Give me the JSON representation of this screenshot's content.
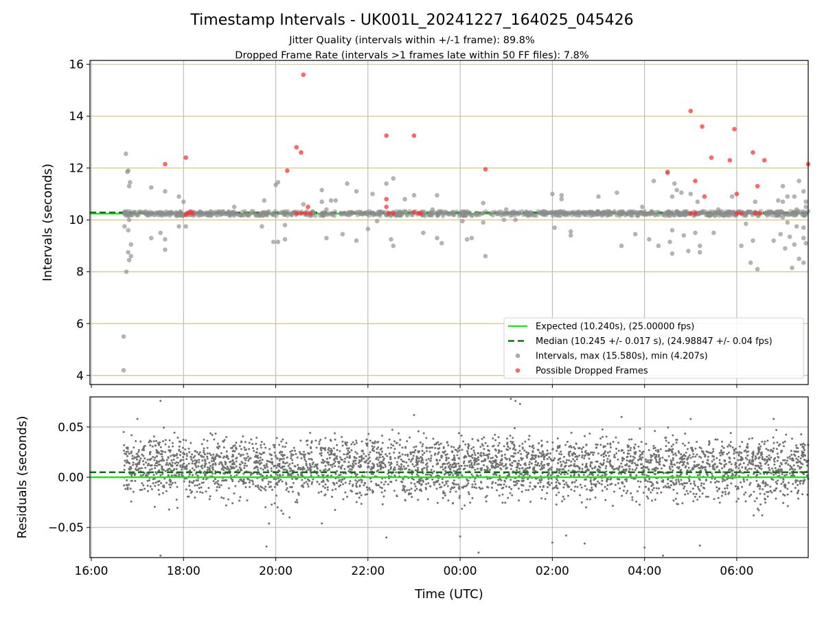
{
  "chart_data": [
    {
      "type": "scatter",
      "title": "Timestamp Intervals - UK001L_20241227_164025_045426",
      "subtitle_lines": [
        "Jitter Quality (intervals within +/-1 frame): 89.8%",
        "Dropped Frame Rate (intervals >1 frames late within 50 FF files): 7.8%"
      ],
      "xlabel": "",
      "ylabel": "Intervals (seconds)",
      "x_unit": "hours since 16:00 UTC on 2024-12-27",
      "xlim": [
        -0.03,
        15.55
      ],
      "ylim": [
        3.65,
        16.15
      ],
      "yticks": [
        4,
        6,
        8,
        10,
        12,
        14,
        16
      ],
      "ytick_labels": [
        "4",
        "6",
        "8",
        "10",
        "12",
        "14",
        "16"
      ],
      "grid_y_color": "#d4c27e",
      "grid_x_color": "#b0b0b0",
      "reference_lines": {
        "expected": {
          "value": 10.24,
          "color": "#22e022",
          "style": "solid"
        },
        "median": {
          "value": 10.245,
          "color": "#007a00",
          "style": "dashed"
        }
      },
      "legend_position": "lower-right",
      "legend": [
        {
          "label": "Expected (10.240s), (25.00000 fps)",
          "kind": "line-solid",
          "color": "#22e022"
        },
        {
          "label": "Median (10.245 +/- 0.017 s), (24.98847 +/- 0.04 fps)",
          "kind": "line-dashed",
          "color": "#007a00"
        },
        {
          "label": "Intervals, max (15.580s), min (4.207s)",
          "kind": "dot",
          "color": "#8c8c8c"
        },
        {
          "label": "Possible Dropped Frames",
          "kind": "dot",
          "color": "#ff3333"
        }
      ],
      "series": [
        {
          "name": "Intervals, max (15.580s), min (4.207s)",
          "color": "#8c8c8c",
          "points": [
            [
              0.7,
              4.2
            ],
            [
              0.7,
              5.5
            ],
            [
              0.72,
              9.75
            ],
            [
              0.75,
              12.55
            ],
            [
              0.78,
              11.85
            ],
            [
              0.8,
              11.9
            ],
            [
              0.82,
              11.3
            ],
            [
              0.84,
              11.45
            ],
            [
              0.76,
              8.0
            ],
            [
              0.8,
              8.75
            ],
            [
              0.82,
              8.45
            ],
            [
              0.86,
              9.05
            ],
            [
              0.86,
              8.6
            ],
            [
              0.8,
              9.6
            ],
            [
              0.82,
              10.0
            ],
            [
              1.3,
              11.25
            ],
            [
              1.3,
              9.3
            ],
            [
              1.5,
              9.5
            ],
            [
              1.6,
              11.1
            ],
            [
              1.6,
              9.25
            ],
            [
              1.6,
              8.85
            ],
            [
              1.9,
              10.9
            ],
            [
              1.9,
              9.75
            ],
            [
              2.0,
              10.7
            ],
            [
              2.05,
              9.75
            ],
            [
              3.1,
              10.5
            ],
            [
              3.7,
              9.75
            ],
            [
              3.75,
              10.75
            ],
            [
              3.95,
              9.15
            ],
            [
              4.0,
              11.35
            ],
            [
              4.05,
              9.15
            ],
            [
              4.05,
              11.45
            ],
            [
              4.2,
              9.25
            ],
            [
              4.2,
              9.8
            ],
            [
              4.6,
              10.6
            ],
            [
              5.0,
              10.7
            ],
            [
              5.0,
              11.15
            ],
            [
              5.1,
              10.4
            ],
            [
              5.1,
              9.3
            ],
            [
              5.2,
              10.75
            ],
            [
              5.3,
              10.75
            ],
            [
              5.45,
              9.45
            ],
            [
              5.55,
              11.4
            ],
            [
              5.65,
              10.3
            ],
            [
              5.75,
              11.1
            ],
            [
              5.75,
              9.2
            ],
            [
              5.85,
              10.3
            ],
            [
              6.0,
              9.65
            ],
            [
              6.1,
              11.0
            ],
            [
              6.2,
              9.95
            ],
            [
              6.4,
              11.4
            ],
            [
              6.5,
              9.25
            ],
            [
              6.55,
              11.6
            ],
            [
              6.55,
              9.0
            ],
            [
              6.65,
              10.2
            ],
            [
              6.8,
              10.8
            ],
            [
              7.0,
              10.95
            ],
            [
              7.2,
              9.5
            ],
            [
              7.4,
              10.4
            ],
            [
              7.5,
              10.95
            ],
            [
              7.5,
              9.3
            ],
            [
              7.6,
              9.1
            ],
            [
              8.05,
              9.95
            ],
            [
              8.15,
              9.25
            ],
            [
              8.25,
              9.3
            ],
            [
              8.55,
              8.6
            ],
            [
              8.5,
              9.9
            ],
            [
              8.5,
              10.65
            ],
            [
              8.95,
              10.0
            ],
            [
              9.0,
              10.4
            ],
            [
              9.2,
              10.0
            ],
            [
              10.0,
              11.0
            ],
            [
              10.05,
              9.7
            ],
            [
              10.2,
              10.95
            ],
            [
              10.2,
              10.8
            ],
            [
              10.4,
              9.55
            ],
            [
              10.4,
              9.4
            ],
            [
              10.7,
              10.2
            ],
            [
              11.0,
              10.9
            ],
            [
              11.4,
              11.05
            ],
            [
              11.5,
              9.0
            ],
            [
              11.8,
              9.45
            ],
            [
              11.95,
              10.5
            ],
            [
              12.1,
              9.25
            ],
            [
              12.2,
              11.5
            ],
            [
              12.3,
              9.0
            ],
            [
              12.3,
              10.2
            ],
            [
              12.5,
              11.8
            ],
            [
              12.55,
              9.15
            ],
            [
              12.6,
              9.6
            ],
            [
              12.6,
              8.7
            ],
            [
              12.6,
              10.9
            ],
            [
              12.65,
              11.4
            ],
            [
              12.7,
              11.15
            ],
            [
              12.8,
              11.05
            ],
            [
              12.85,
              9.4
            ],
            [
              12.95,
              8.8
            ],
            [
              13.0,
              11.0
            ],
            [
              13.1,
              9.5
            ],
            [
              13.15,
              10.7
            ],
            [
              13.2,
              9.0
            ],
            [
              13.2,
              8.75
            ],
            [
              13.5,
              9.5
            ],
            [
              13.6,
              10.4
            ],
            [
              13.9,
              10.9
            ],
            [
              14.1,
              9.0
            ],
            [
              14.3,
              8.35
            ],
            [
              14.45,
              8.1
            ],
            [
              14.8,
              9.2
            ],
            [
              14.9,
              10.2
            ],
            [
              14.95,
              9.45
            ],
            [
              15.05,
              8.9
            ],
            [
              15.15,
              9.35
            ],
            [
              15.2,
              8.15
            ],
            [
              15.3,
              10.4
            ],
            [
              15.45,
              11.1
            ],
            [
              15.0,
              10.7
            ],
            [
              15.1,
              9.9
            ],
            [
              15.25,
              10.9
            ],
            [
              15.35,
              8.5
            ],
            [
              15.0,
              11.3
            ],
            [
              15.0,
              10.1
            ],
            [
              14.9,
              10.75
            ],
            [
              15.1,
              10.9
            ],
            [
              15.25,
              9.05
            ],
            [
              15.3,
              9.75
            ],
            [
              15.45,
              9.3
            ],
            [
              15.35,
              11.5
            ],
            [
              15.5,
              9.1
            ],
            [
              15.45,
              8.35
            ],
            [
              15.5,
              10.7
            ],
            [
              15.45,
              9.7
            ],
            [
              15.5,
              10.5
            ],
            [
              14.2,
              9.85
            ],
            [
              14.35,
              9.2
            ],
            [
              14.4,
              10.7
            ]
          ]
        },
        {
          "name": "Possible Dropped Frames",
          "color": "#ff3333",
          "points": [
            [
              1.6,
              12.15
            ],
            [
              2.05,
              12.4
            ],
            [
              2.1,
              10.25
            ],
            [
              2.15,
              10.3
            ],
            [
              2.2,
              10.25
            ],
            [
              2.05,
              10.2
            ],
            [
              4.25,
              11.9
            ],
            [
              4.45,
              12.8
            ],
            [
              4.55,
              12.6
            ],
            [
              4.6,
              15.6
            ],
            [
              4.7,
              10.5
            ],
            [
              4.45,
              10.25
            ],
            [
              4.55,
              10.25
            ],
            [
              4.65,
              10.25
            ],
            [
              4.75,
              10.25
            ],
            [
              6.4,
              13.25
            ],
            [
              6.4,
              10.8
            ],
            [
              6.4,
              10.5
            ],
            [
              6.45,
              10.25
            ],
            [
              6.55,
              10.25
            ],
            [
              7.0,
              13.25
            ],
            [
              7.0,
              10.3
            ],
            [
              7.1,
              10.25
            ],
            [
              7.15,
              10.25
            ],
            [
              8.55,
              11.95
            ],
            [
              12.5,
              11.85
            ],
            [
              13.0,
              14.2
            ],
            [
              13.1,
              11.5
            ],
            [
              13.25,
              13.6
            ],
            [
              13.3,
              10.9
            ],
            [
              13.45,
              12.4
            ],
            [
              13.1,
              10.25
            ],
            [
              13.0,
              10.25
            ],
            [
              13.85,
              12.3
            ],
            [
              13.95,
              13.5
            ],
            [
              14.0,
              11.0
            ],
            [
              14.0,
              10.25
            ],
            [
              14.1,
              10.25
            ],
            [
              14.35,
              12.6
            ],
            [
              14.45,
              11.3
            ],
            [
              14.6,
              12.3
            ],
            [
              14.4,
              10.25
            ],
            [
              14.5,
              10.25
            ],
            [
              15.55,
              12.15
            ]
          ]
        }
      ]
    },
    {
      "type": "scatter",
      "title": "",
      "xlabel": "Time (UTC)",
      "ylabel": "Residuals (seconds)",
      "x_unit": "hours since 16:00 UTC on 2024-12-27",
      "xlim": [
        -0.03,
        15.55
      ],
      "ylim": [
        -0.08,
        0.08
      ],
      "yticks": [
        -0.05,
        0.0,
        0.05
      ],
      "ytick_labels": [
        "−0.05",
        "0.00",
        "0.05"
      ],
      "xticks": [
        0,
        2,
        4,
        6,
        8,
        10,
        12,
        14
      ],
      "xtick_labels": [
        "16:00",
        "18:00",
        "20:00",
        "22:00",
        "00:00",
        "02:00",
        "04:00",
        "06:00"
      ],
      "grid_color": "#b0b0b0",
      "reference_lines": {
        "expected": {
          "value": 0.0,
          "color": "#22e022",
          "style": "solid"
        },
        "median": {
          "value": 0.005,
          "color": "#007a00",
          "style": "dashed"
        }
      },
      "series": [
        {
          "name": "residuals",
          "color": "#707070",
          "x_range": [
            0.7,
            15.55
          ],
          "clusters": [
            {
              "center": 0.0,
              "spread": 0.012,
              "share": 0.5
            },
            {
              "center": 0.02,
              "spread": 0.01,
              "share": 0.5
            }
          ],
          "outliers": [
            [
              1.5,
              0.076
            ],
            [
              1.5,
              -0.078
            ],
            [
              3.8,
              -0.069
            ],
            [
              7.0,
              0.062
            ],
            [
              6.4,
              -0.06
            ],
            [
              8.0,
              -0.059
            ],
            [
              8.4,
              -0.075
            ],
            [
              10.0,
              -0.065
            ],
            [
              10.3,
              -0.058
            ],
            [
              10.7,
              -0.066
            ],
            [
              11.5,
              0.06
            ],
            [
              12.0,
              -0.07
            ],
            [
              12.4,
              -0.078
            ],
            [
              13.2,
              -0.068
            ],
            [
              14.8,
              0.058
            ],
            [
              5.0,
              -0.046
            ],
            [
              4.3,
              -0.04
            ],
            [
              1.0,
              0.058
            ],
            [
              9.1,
              0.078
            ],
            [
              9.2,
              0.076
            ],
            [
              9.3,
              0.073
            ],
            [
              13.0,
              0.058
            ]
          ]
        }
      ]
    }
  ]
}
